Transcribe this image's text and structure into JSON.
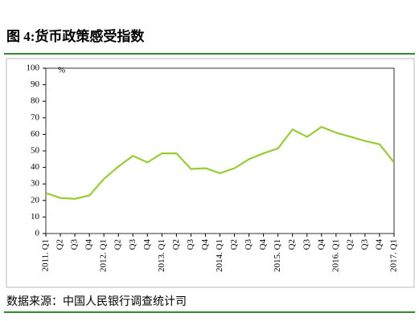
{
  "chart_data": {
    "type": "line",
    "title": "图 4:货币政策感受指数",
    "source": "数据来源：中国人民银行调查统计司",
    "y_unit": "%",
    "categories": [
      "2011. Q1",
      "Q2",
      "Q3",
      "Q4",
      "2012. Q1",
      "Q2",
      "Q3",
      "Q4",
      "2013. Q1",
      "Q2",
      "Q3",
      "Q4",
      "2014. Q1",
      "Q2",
      "Q3",
      "Q4",
      "2015. Q1",
      "Q2",
      "Q3",
      "Q4",
      "2016. Q1",
      "Q2",
      "Q3",
      "Q4",
      "2017. Q1"
    ],
    "values": [
      24.5,
      21.5,
      21,
      23,
      33,
      40.5,
      47,
      43,
      48.5,
      48.5,
      39,
      39.5,
      36.5,
      39.5,
      45,
      48.5,
      51.5,
      63,
      58.5,
      64.5,
      61,
      58.5,
      56,
      54,
      43
    ],
    "color": "#99cc33",
    "ylim": [
      0,
      100
    ],
    "yticks": [
      0,
      10,
      20,
      30,
      40,
      50,
      60,
      70,
      80,
      90,
      100
    ]
  }
}
